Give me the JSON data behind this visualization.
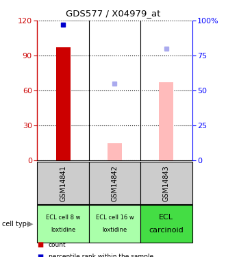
{
  "title": "GDS577 / X04979_at",
  "samples": [
    "GSM14841",
    "GSM14842",
    "GSM14843"
  ],
  "cell_types_line1": [
    "ECL cell 8 w",
    "ECL cell 16 w",
    "ECL"
  ],
  "cell_types_line2": [
    "loxtidine",
    "loxtidine",
    "carcinoid"
  ],
  "cell_type_colors": [
    "#aaffaa",
    "#aaffaa",
    "#44dd44"
  ],
  "bar_values_count": [
    97,
    null,
    null
  ],
  "bar_values_absent": [
    null,
    15,
    67
  ],
  "dot_rank_present": [
    97,
    null,
    null
  ],
  "dot_rank_absent": [
    null,
    55,
    80
  ],
  "ylim_left": [
    0,
    120
  ],
  "ylim_right": [
    0,
    100
  ],
  "yticks_left": [
    0,
    30,
    60,
    90,
    120
  ],
  "yticks_right": [
    0,
    25,
    50,
    75,
    100
  ],
  "color_count": "#cc0000",
  "color_rank_present": "#0000cc",
  "color_bar_absent": "#ffbbbb",
  "color_dot_absent": "#aaaaee",
  "sample_bg": "#cccccc",
  "plot_bg": "#ffffff"
}
